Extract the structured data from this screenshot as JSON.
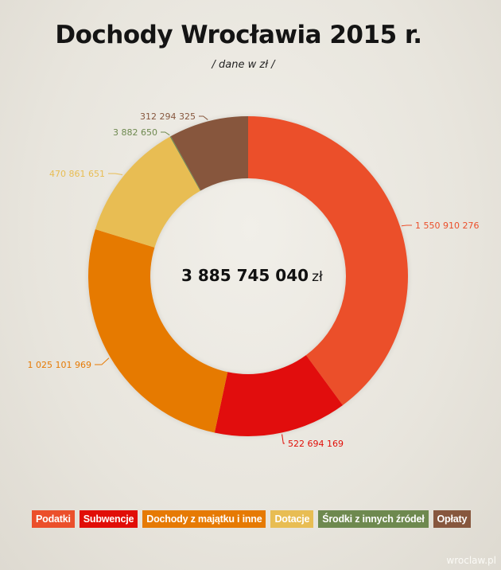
{
  "title": "Dochody Wrocławia 2015 r.",
  "subtitle": "/ dane w zł /",
  "total": {
    "value": "3 885 745 040",
    "unit": "zł"
  },
  "source": "wroclaw.pl",
  "chart_data": {
    "type": "pie",
    "title": "Dochody Wrocławia 2015 r.",
    "subtitle": "/ dane w zł /",
    "categories": [
      "Podatki",
      "Subwencje",
      "Dochody z majątku i inne",
      "Dotacje",
      "Środki z innych źródeł",
      "Opłaty"
    ],
    "values": [
      1550910276,
      522694169,
      1025101969,
      470861651,
      3882650,
      312294325
    ],
    "labels": [
      "1 550 910 276",
      "522 694 169",
      "1 025 101 969",
      "470 861 651",
      "3 882 650",
      "312 294 325"
    ],
    "colors": [
      "#eb4f2b",
      "#e10e07",
      "#e67a04",
      "#e8bd53",
      "#6e894f",
      "#87573e"
    ],
    "donut": true,
    "total_label": "3 885 745 040 zł",
    "legend_position": "bottom"
  }
}
